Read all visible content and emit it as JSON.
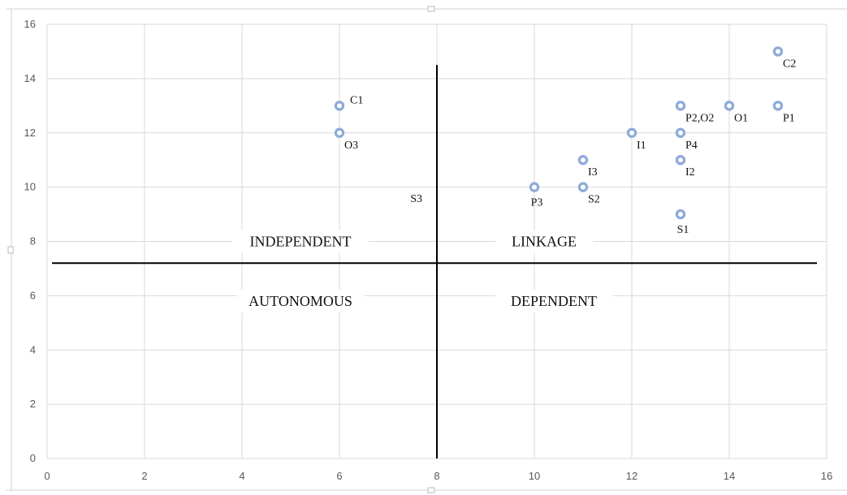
{
  "chart_data": {
    "type": "scatter",
    "title": "",
    "xlabel": "",
    "ylabel": "",
    "xlim": [
      0,
      16
    ],
    "ylim": [
      0,
      16
    ],
    "xticks": [
      0,
      2,
      4,
      6,
      8,
      10,
      12,
      14,
      16
    ],
    "yticks": [
      0,
      2,
      4,
      6,
      8,
      10,
      12,
      14,
      16
    ],
    "grid": true,
    "marker_color": "#8eaadb",
    "points": [
      {
        "label": "C1",
        "x": 6,
        "y": 13,
        "label_pos": "upper-right"
      },
      {
        "label": "O3",
        "x": 6,
        "y": 12,
        "label_pos": "lower-right"
      },
      {
        "label": "P3",
        "x": 10,
        "y": 10,
        "label_pos": "below"
      },
      {
        "label": "I3",
        "x": 11,
        "y": 11,
        "label_pos": "lower-right"
      },
      {
        "label": "S2",
        "x": 11,
        "y": 10,
        "label_pos": "lower-right"
      },
      {
        "label": "I1",
        "x": 12,
        "y": 12,
        "label_pos": "lower-right"
      },
      {
        "label": "P2,O2",
        "x": 13,
        "y": 13,
        "label_pos": "lower-right"
      },
      {
        "label": "P4",
        "x": 13,
        "y": 12,
        "label_pos": "lower-right"
      },
      {
        "label": "I2",
        "x": 13,
        "y": 11,
        "label_pos": "lower-right"
      },
      {
        "label": "S1",
        "x": 13,
        "y": 9,
        "label_pos": "below"
      },
      {
        "label": "O1",
        "x": 14,
        "y": 13,
        "label_pos": "lower-right"
      },
      {
        "label": "C2",
        "x": 15,
        "y": 15,
        "label_pos": "lower-right"
      },
      {
        "label": "P1",
        "x": 15,
        "y": 13,
        "label_pos": "lower-right"
      }
    ],
    "annotations": [
      {
        "text": "S3",
        "x": 7.7,
        "y": 9.6
      }
    ],
    "divider_lines": [
      {
        "orientation": "vertical",
        "x": 8,
        "y_from": 0,
        "y_to": 14.5
      },
      {
        "orientation": "horizontal",
        "y": 7.2,
        "x_from": 0.1,
        "x_to": 15.8
      }
    ],
    "quadrant_labels": [
      {
        "text": "INDEPENDENT",
        "x": 5.2,
        "y": 8
      },
      {
        "text": "LINKAGE",
        "x": 10.2,
        "y": 8
      },
      {
        "text": "AUTONOMOUS",
        "x": 5.2,
        "y": 5.8
      },
      {
        "text": "DEPENDENT",
        "x": 10.4,
        "y": 5.8
      }
    ]
  }
}
